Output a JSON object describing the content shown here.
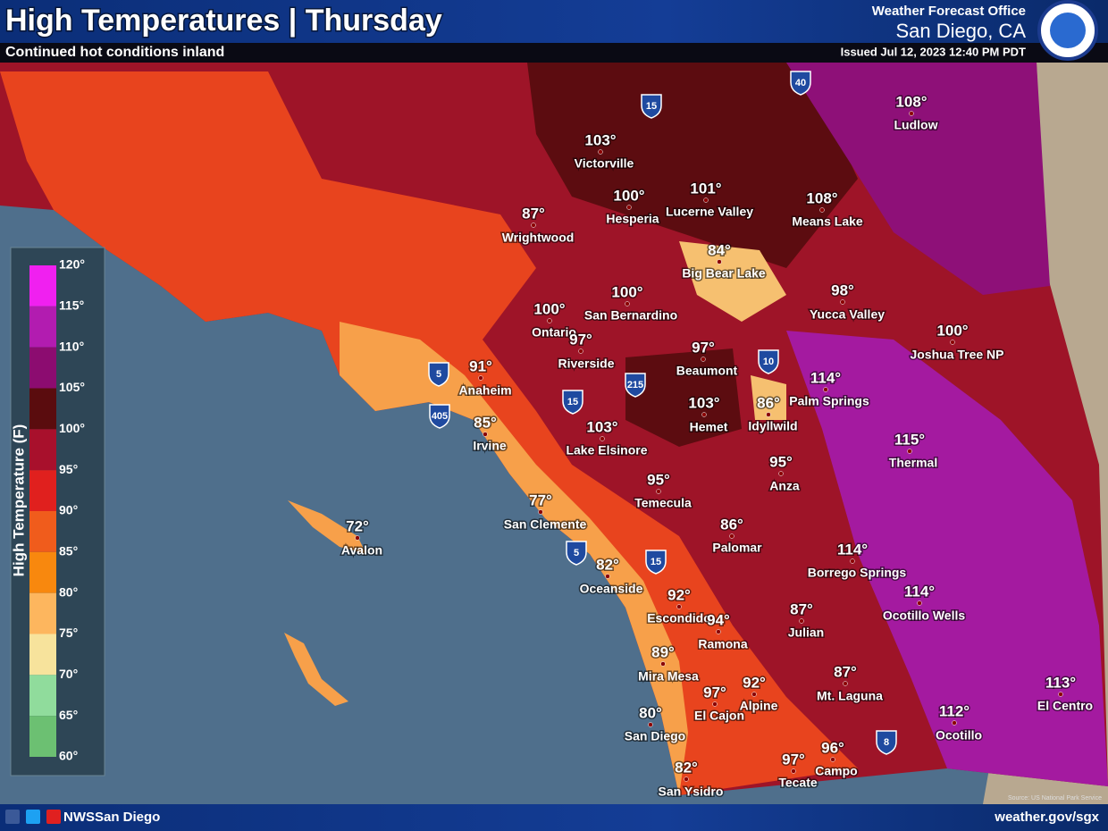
{
  "header": {
    "title": "High Temperatures | Thursday",
    "subtitle": "Continued hot conditions inland",
    "office": "Weather Forecast Office",
    "location": "San Diego, CA",
    "issued": "Issued Jul 12, 2023 12:40 PM PDT"
  },
  "legend": {
    "title": "High Temperature (F)",
    "ticks": [
      "120°",
      "115°",
      "110°",
      "105°",
      "100°",
      "95°",
      "90°",
      "85°",
      "80°",
      "75°",
      "70°",
      "65°",
      "60°"
    ],
    "colors": [
      "#f020f0",
      "#b21cb0",
      "#8c0c70",
      "#5a0c0e",
      "#a8102c",
      "#e0201e",
      "#f05c1c",
      "#f8880e",
      "#fdb65e",
      "#f7e39c",
      "#90dc9c",
      "#6cc072"
    ]
  },
  "cities": [
    {
      "name": "Ludlow",
      "temp": "108°"
    },
    {
      "name": "Victorville",
      "temp": "103°"
    },
    {
      "name": "Hesperia",
      "temp": "100°"
    },
    {
      "name": "Lucerne Valley",
      "temp": "101°"
    },
    {
      "name": "Means Lake",
      "temp": "108°"
    },
    {
      "name": "Wrightwood",
      "temp": "87°"
    },
    {
      "name": "Big Bear Lake",
      "temp": "84°"
    },
    {
      "name": "San Bernardino",
      "temp": "100°"
    },
    {
      "name": "Yucca Valley",
      "temp": "98°"
    },
    {
      "name": "Ontario",
      "temp": "100°"
    },
    {
      "name": "Riverside",
      "temp": "97°"
    },
    {
      "name": "Joshua Tree NP",
      "temp": "100°"
    },
    {
      "name": "Beaumont",
      "temp": "97°"
    },
    {
      "name": "Anaheim",
      "temp": "91°"
    },
    {
      "name": "Palm Springs",
      "temp": "114°"
    },
    {
      "name": "Hemet",
      "temp": "103°"
    },
    {
      "name": "Idyllwild",
      "temp": "86°"
    },
    {
      "name": "Irvine",
      "temp": "85°"
    },
    {
      "name": "Lake Elsinore",
      "temp": "103°"
    },
    {
      "name": "Thermal",
      "temp": "115°"
    },
    {
      "name": "Anza",
      "temp": "95°"
    },
    {
      "name": "Temecula",
      "temp": "95°"
    },
    {
      "name": "San Clemente",
      "temp": "77°"
    },
    {
      "name": "Avalon",
      "temp": "72°"
    },
    {
      "name": "Palomar",
      "temp": "86°"
    },
    {
      "name": "Borrego Springs",
      "temp": "114°"
    },
    {
      "name": "Oceanside",
      "temp": "82°"
    },
    {
      "name": "Ocotillo Wells",
      "temp": "114°"
    },
    {
      "name": "Escondido",
      "temp": "92°"
    },
    {
      "name": "Ramona",
      "temp": "94°"
    },
    {
      "name": "Julian",
      "temp": "87°"
    },
    {
      "name": "Mira Mesa",
      "temp": "89°"
    },
    {
      "name": "Mt. Laguna",
      "temp": "87°"
    },
    {
      "name": "Alpine",
      "temp": "92°"
    },
    {
      "name": "El Cajon",
      "temp": "97°"
    },
    {
      "name": "Ocotillo",
      "temp": "112°"
    },
    {
      "name": "El Centro",
      "temp": "113°"
    },
    {
      "name": "San Diego",
      "temp": "80°"
    },
    {
      "name": "Campo",
      "temp": "96°"
    },
    {
      "name": "Tecate",
      "temp": "97°"
    },
    {
      "name": "San Ysidro",
      "temp": "82°"
    }
  ],
  "shields": [
    "15",
    "40",
    "5",
    "405",
    "15",
    "215",
    "10",
    "5",
    "15",
    "8"
  ],
  "source": "Source: US National Park Service",
  "footer": {
    "social": "NWSSan Diego",
    "url": "weather.gov/sgx"
  }
}
